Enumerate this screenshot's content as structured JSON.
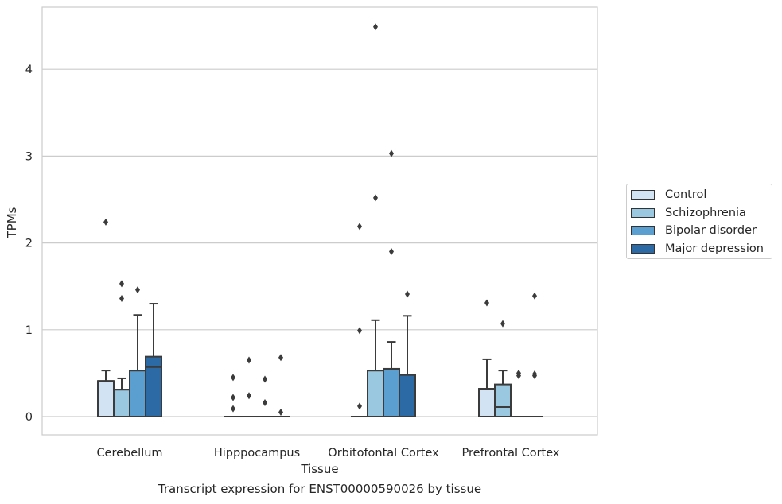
{
  "chart_data": {
    "type": "box",
    "xlabel": "Tissue",
    "ylabel": "TPMs",
    "caption": "Transcript expression for ENST00000590026 by tissue",
    "categories": [
      "Cerebellum",
      "Hipppocampus",
      "Orbitofontal Cortex",
      "Prefrontal Cortex"
    ],
    "ylim": [
      -0.22,
      4.7
    ],
    "yticks": [
      0,
      1,
      2,
      3,
      4
    ],
    "grid": "horizontal",
    "legend_position": "right",
    "series": [
      {
        "name": "Control",
        "color": "#d2e3f3",
        "boxes": [
          {
            "q1": 0,
            "median": 0.41,
            "q3": 0.41,
            "whisker_low": 0,
            "whisker_high": 0.53,
            "outliers": [
              2.24
            ]
          },
          {
            "q1": 0,
            "median": 0,
            "q3": 0,
            "whisker_low": 0,
            "whisker_high": 0,
            "outliers": [
              0.09,
              0.22,
              0.45
            ]
          },
          {
            "q1": 0,
            "median": 0,
            "q3": 0,
            "whisker_low": 0,
            "whisker_high": 0,
            "outliers": [
              0.12,
              0.99,
              2.19
            ]
          },
          {
            "q1": 0,
            "median": 0.32,
            "q3": 0.32,
            "whisker_low": 0,
            "whisker_high": 0.66,
            "outliers": [
              1.31
            ]
          }
        ]
      },
      {
        "name": "Schizophrenia",
        "color": "#9ac8e0",
        "boxes": [
          {
            "q1": 0,
            "median": 0.31,
            "q3": 0.31,
            "whisker_low": 0,
            "whisker_high": 0.44,
            "outliers": [
              1.36,
              1.53
            ]
          },
          {
            "q1": 0,
            "median": 0,
            "q3": 0,
            "whisker_low": 0,
            "whisker_high": 0,
            "outliers": [
              0.24,
              0.65
            ]
          },
          {
            "q1": 0,
            "median": 0.53,
            "q3": 0.53,
            "whisker_low": 0,
            "whisker_high": 1.11,
            "outliers": [
              2.52,
              4.49
            ]
          },
          {
            "q1": 0,
            "median": 0.11,
            "q3": 0.37,
            "whisker_low": 0,
            "whisker_high": 0.53,
            "outliers": [
              1.07
            ]
          }
        ]
      },
      {
        "name": "Bipolar disorder",
        "color": "#5a9fcf",
        "boxes": [
          {
            "q1": 0,
            "median": 0.53,
            "q3": 0.53,
            "whisker_low": 0,
            "whisker_high": 1.17,
            "outliers": [
              1.46
            ]
          },
          {
            "q1": 0,
            "median": 0,
            "q3": 0,
            "whisker_low": 0,
            "whisker_high": 0,
            "outliers": [
              0.16,
              0.43
            ]
          },
          {
            "q1": 0,
            "median": 0.55,
            "q3": 0.55,
            "whisker_low": 0,
            "whisker_high": 0.86,
            "outliers": [
              1.9,
              3.03
            ]
          },
          {
            "q1": 0,
            "median": 0,
            "q3": 0,
            "whisker_low": 0,
            "whisker_high": 0,
            "outliers": [
              0.47,
              0.5
            ]
          }
        ]
      },
      {
        "name": "Major depression",
        "color": "#2b6aa5",
        "boxes": [
          {
            "q1": 0,
            "median": 0.57,
            "q3": 0.69,
            "whisker_low": 0,
            "whisker_high": 1.3,
            "outliers": []
          },
          {
            "q1": 0,
            "median": 0,
            "q3": 0,
            "whisker_low": 0,
            "whisker_high": 0,
            "outliers": [
              0.05,
              0.68
            ]
          },
          {
            "q1": 0,
            "median": 0.48,
            "q3": 0.48,
            "whisker_low": 0,
            "whisker_high": 1.16,
            "outliers": [
              1.41
            ]
          },
          {
            "q1": 0,
            "median": 0,
            "q3": 0,
            "whisker_low": 0,
            "whisker_high": 0,
            "outliers": [
              0.47,
              0.49,
              1.39
            ]
          }
        ]
      }
    ]
  }
}
